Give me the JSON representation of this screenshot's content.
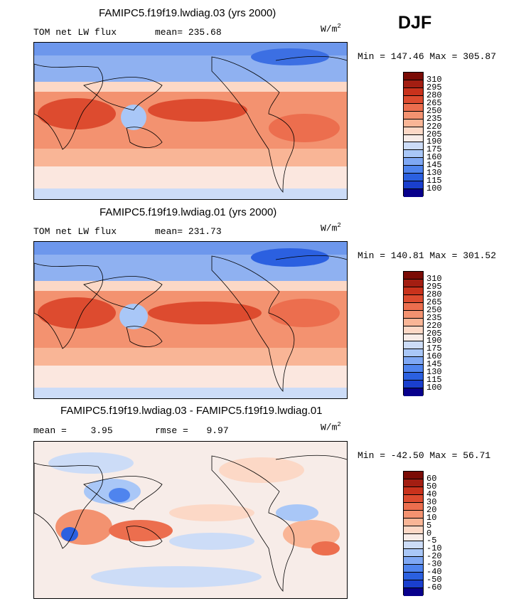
{
  "season": "DJF",
  "units": {
    "base": "W/m",
    "exp": "2"
  },
  "palette": {
    "abs": [
      "#08008c",
      "#1a3fce",
      "#2b60e0",
      "#4f84ee",
      "#7fa8f4",
      "#a9c7f7",
      "#ccdcf7",
      "#f7ece8",
      "#fcd8c6",
      "#f9b596",
      "#f39270",
      "#ec6e4e",
      "#dd4b2f",
      "#c9321c",
      "#a31e12",
      "#7a0b05"
    ],
    "diff": [
      "#08008c",
      "#1a3fce",
      "#2b60e0",
      "#4f84ee",
      "#7fa8f4",
      "#a9c7f7",
      "#ccdcf7",
      "#f7ece8",
      "#fcd8c6",
      "#f9b596",
      "#f39270",
      "#ec6e4e",
      "#dd4b2f",
      "#c9321c",
      "#a31e12",
      "#7a0b05"
    ]
  },
  "chart_data": [
    {
      "type": "heatmap",
      "title": "FAMIPC5.f19f19.lwdiag.03 (yrs 2000)",
      "variable": "TOM net LW flux",
      "stat1_label": "mean=",
      "stat1_value": "235.68",
      "min_max": "Min = 147.46 Max = 305.87",
      "min": 147.46,
      "max": 305.87,
      "levels": [
        "310",
        "295",
        "280",
        "265",
        "250",
        "235",
        "220",
        "205",
        "190",
        "175",
        "160",
        "145",
        "130",
        "115",
        "100"
      ]
    },
    {
      "type": "heatmap",
      "title": "FAMIPC5.f19f19.lwdiag.01 (yrs 2000)",
      "variable": "TOM net LW flux",
      "stat1_label": "mean=",
      "stat1_value": "231.73",
      "min_max": "Min = 140.81 Max = 301.52",
      "min": 140.81,
      "max": 301.52,
      "levels": [
        "310",
        "295",
        "280",
        "265",
        "250",
        "235",
        "220",
        "205",
        "190",
        "175",
        "160",
        "145",
        "130",
        "115",
        "100"
      ]
    },
    {
      "type": "heatmap",
      "title": "FAMIPC5.f19f19.lwdiag.03 - FAMIPC5.f19f19.lwdiag.01",
      "stat1_label": "mean =",
      "stat1_value": "3.95",
      "stat2_label": "rmse =",
      "stat2_value": "9.97",
      "min_max": "Min = -42.50 Max =  56.71",
      "min": -42.5,
      "max": 56.71,
      "levels": [
        "60",
        "50",
        "40",
        "30",
        "20",
        "10",
        "5",
        "0",
        "-5",
        "-10",
        "-20",
        "-30",
        "-40",
        "-50",
        "-60"
      ]
    }
  ]
}
